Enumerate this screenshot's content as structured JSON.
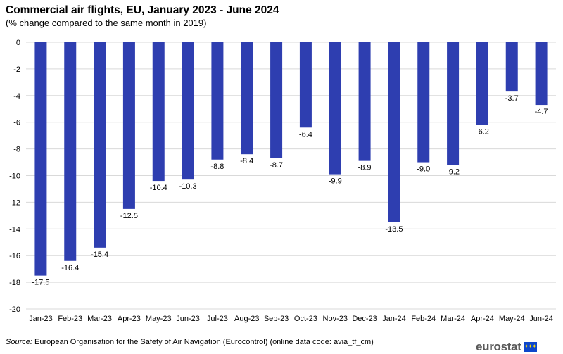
{
  "chart_data": {
    "type": "bar",
    "title": "Commercial air flights, EU, January 2023 - June 2024",
    "subtitle": "(% change compared to the same month in 2019)",
    "categories": [
      "Jan-23",
      "Feb-23",
      "Mar-23",
      "Apr-23",
      "May-23",
      "Jun-23",
      "Jul-23",
      "Aug-23",
      "Sep-23",
      "Oct-23",
      "Nov-23",
      "Dec-23",
      "Jan-24",
      "Feb-24",
      "Mar-24",
      "Apr-24",
      "May-24",
      "Jun-24"
    ],
    "values": [
      -17.5,
      -16.4,
      -15.4,
      -12.5,
      -10.4,
      -10.3,
      -8.8,
      -8.4,
      -8.7,
      -6.4,
      -9.9,
      -8.9,
      -13.5,
      -9.0,
      -9.2,
      -6.2,
      -3.7,
      -4.7
    ],
    "value_labels": [
      "-17.5",
      "-16.4",
      "-15.4",
      "-12.5",
      "-10.4",
      "-10.3",
      "-8.8",
      "-8.4",
      "-8.7",
      "-6.4",
      "-9.9",
      "-8.9",
      "-13.5",
      "-9.0",
      "-9.2",
      "-6.2",
      "-3.7",
      "-4.7"
    ],
    "yticks": [
      0,
      -2,
      -4,
      -6,
      -8,
      -10,
      -12,
      -14,
      -16,
      -18,
      -20
    ],
    "ylim": [
      -20,
      0
    ],
    "xlabel": "",
    "ylabel": "",
    "grid": true,
    "bar_color": "#2e3eb0"
  },
  "source": {
    "label": "Source:",
    "text": "European Organisation for the Safety of Air Navigation (Eurocontrol) (online data code: avia_tf_cm)"
  },
  "logo": {
    "text": "eurostat"
  }
}
